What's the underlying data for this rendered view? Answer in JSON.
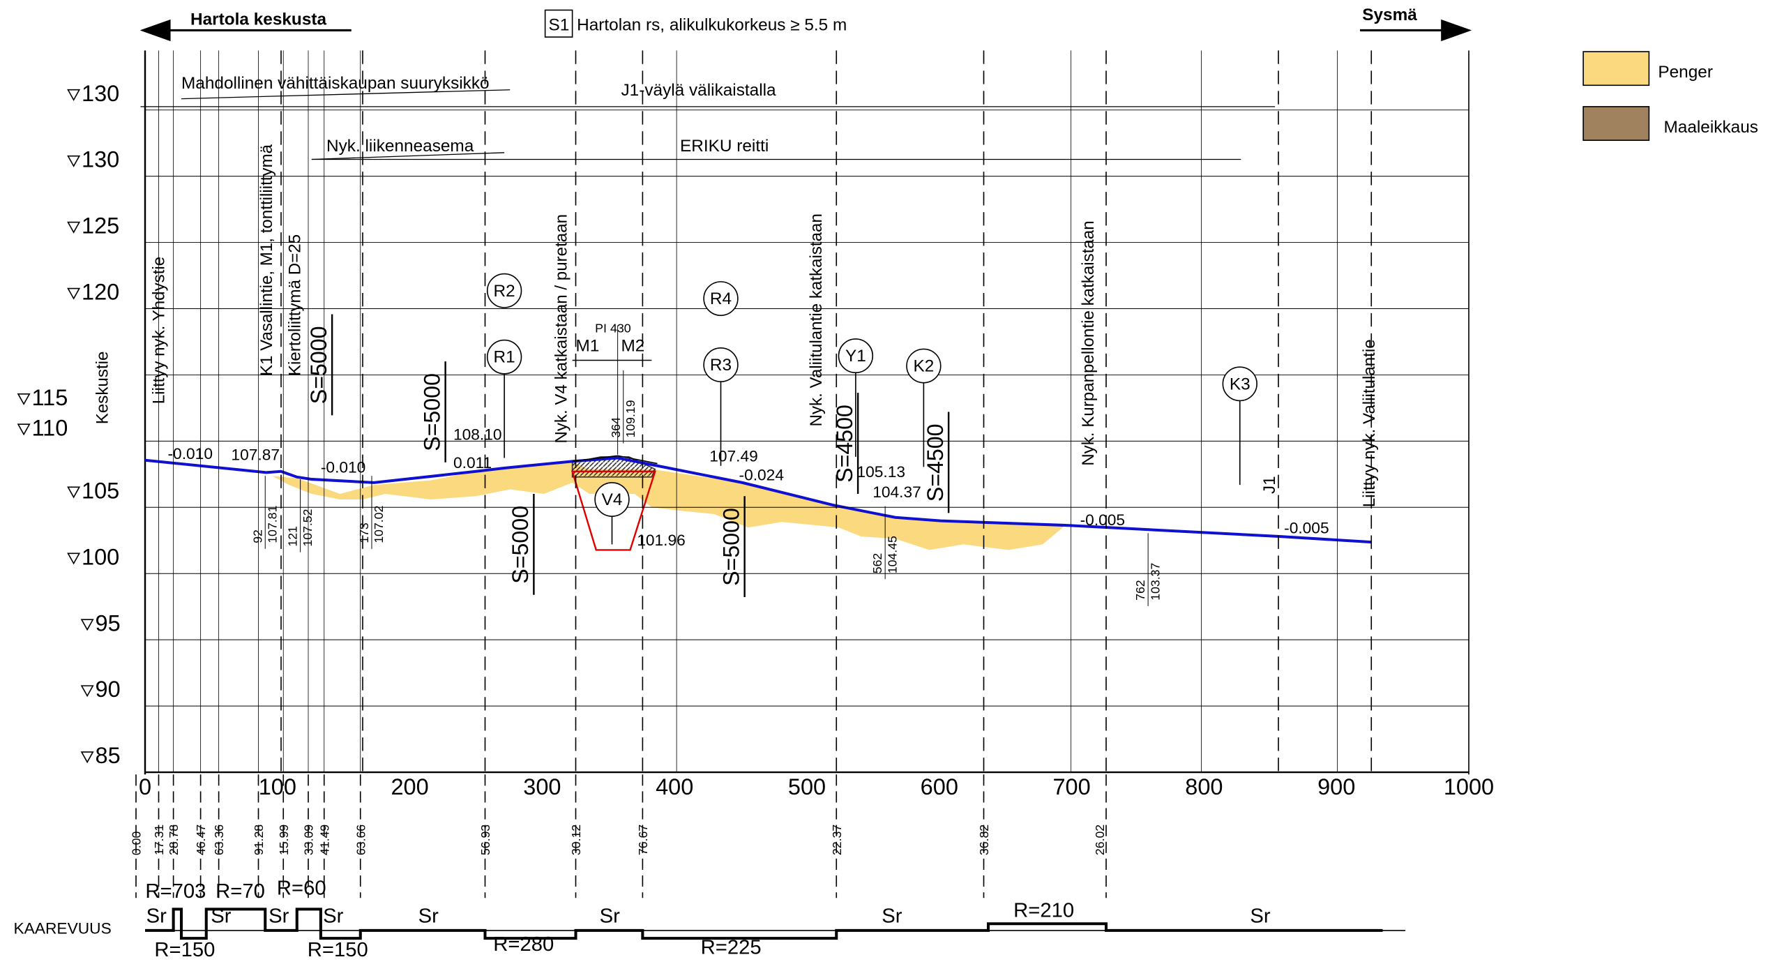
{
  "header": {
    "left_direction": "Hartola keskusta",
    "right_direction": "Sysmä",
    "center_box": "S1",
    "center_text": "Hartolan rs, alikulkukorkeus ≥ 5.5 m"
  },
  "legend": [
    "Penger",
    "Maaleikkaus"
  ],
  "elevation_labels": [
    "130",
    "130",
    "125",
    "120",
    "115",
    "110",
    "105",
    "100",
    "95",
    "90",
    "85"
  ],
  "station_labels": [
    "0",
    "100",
    "200",
    "300",
    "400",
    "500",
    "600",
    "700",
    "800",
    "900",
    "1000"
  ],
  "spans": [
    "Mahdollinen vähittäiskaupan suuryksikkö",
    "J1-väylä välikaistalla",
    "Nyk. liikenneasema",
    "ERIKU reitti"
  ],
  "vertical_labels": [
    "Keskustie",
    "Liittyy nyk. Yhdystie",
    "K1 Vasallintie, M1, tonttiliittymä",
    "Kiertoliittymä D=25",
    "Nyk. V4 katkaistaan / puretaan",
    "Nyk. Valiitulantie katkaistaan",
    "Nyk. Kurpanpellontie katkaistaan",
    "J1",
    "Liittyy nyk. Valiitulantie"
  ],
  "vertical_curves": [
    "S=5000",
    "S=5000",
    "S=5000",
    "S=5000",
    "S=4500",
    "S=4500"
  ],
  "grades": [
    "-0.010",
    "-0.010",
    "0.011",
    "-0.024",
    "-0.005",
    "-0.005"
  ],
  "elevations": [
    "107.87",
    "108.10",
    "107.49",
    "105.13",
    "104.37",
    "101.96"
  ],
  "station_points": [
    [
      "92",
      "107.81"
    ],
    [
      "121",
      "107.52"
    ],
    [
      "173",
      "107.02"
    ],
    [
      "364",
      "109.19"
    ],
    [
      "562",
      "104.45"
    ],
    [
      "762",
      "103.37"
    ]
  ],
  "markers": [
    "R2",
    "R1",
    "R4",
    "R3",
    "Y1",
    "K2",
    "K3",
    "V4"
  ],
  "intersection": {
    "label": "PI 430",
    "left": "M1",
    "right": "M2"
  },
  "curve_lengths": [
    "0.00",
    "17.31",
    "28.78",
    "46.47",
    "63.36",
    "91.28",
    "15.99",
    "33.09",
    "41.49",
    "63.66",
    "56.93",
    "30.12",
    "76.67",
    "22.37",
    "36.82",
    "26.02"
  ],
  "curvature": {
    "title": "KAAREVUUS",
    "labels": [
      "R=703",
      "R=70",
      "R=60",
      "Sr",
      "Sr",
      "Sr",
      "Sr",
      "Sr",
      "Sr",
      "Sr",
      "R=210",
      "Sr",
      "R=150",
      "R=150",
      "R=280",
      "R=225"
    ]
  }
}
